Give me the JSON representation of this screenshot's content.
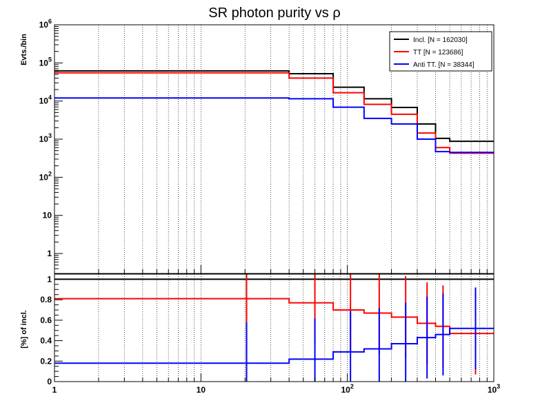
{
  "chart_data": [
    {
      "type": "line",
      "panel": "upper",
      "title": "SR photon purity vs ρ",
      "xlabel": "",
      "ylabel": "Evts./bin",
      "xscale": "log",
      "yscale": "log",
      "xlim": [
        1,
        1000
      ],
      "ylim": [
        0.3,
        1000000
      ],
      "grid": "x",
      "legend_position": "top-right",
      "bin_edges": [
        1,
        40,
        80,
        130,
        200,
        300,
        400,
        500,
        1000
      ],
      "series": [
        {
          "name": "Incl. [N = 162030]",
          "color": "#000000",
          "values": [
            62000,
            52000,
            23000,
            11500,
            6800,
            2500,
            1050,
            880
          ]
        },
        {
          "name": "TT [N = 123686]",
          "color": "#ff0000",
          "values": [
            55000,
            40000,
            16500,
            8200,
            4500,
            1450,
            600,
            430
          ]
        },
        {
          "name": "Anti TT. [N = 38344]",
          "color": "#0000ff",
          "values": [
            12000,
            11500,
            6900,
            3500,
            2500,
            1000,
            470,
            450
          ]
        }
      ],
      "x_ticks": [
        {
          "label": "1",
          "value": 1
        },
        {
          "label": "10",
          "value": 10
        },
        {
          "label": "10",
          "sup": "2",
          "value": 100
        },
        {
          "label": "10",
          "sup": "3",
          "value": 1000
        }
      ],
      "y_ticks": [
        {
          "label": "1",
          "value": 1
        },
        {
          "label": "10",
          "value": 10
        },
        {
          "label": "10",
          "sup": "2",
          "value": 100
        },
        {
          "label": "10",
          "sup": "3",
          "value": 1000
        },
        {
          "label": "10",
          "sup": "4",
          "value": 10000
        },
        {
          "label": "10",
          "sup": "5",
          "value": 100000
        },
        {
          "label": "10",
          "sup": "6",
          "value": 1000000
        }
      ]
    },
    {
      "type": "line",
      "panel": "lower",
      "title": "",
      "xlabel": "",
      "ylabel": "[%] of incl.",
      "xscale": "log",
      "yscale": "linear",
      "xlim": [
        1,
        1000
      ],
      "ylim": [
        0,
        1.05
      ],
      "grid": "x",
      "bin_edges": [
        1,
        40,
        80,
        130,
        200,
        300,
        400,
        500,
        1000
      ],
      "bin_centers": [
        20.5,
        60,
        105,
        165,
        250,
        350,
        450,
        750
      ],
      "series": [
        {
          "name": "Incl.",
          "color": "#000000",
          "values": [
            1,
            1,
            1,
            1,
            1,
            1,
            1,
            1
          ],
          "errors": [
            0,
            0,
            0,
            0,
            0,
            0,
            0,
            0
          ]
        },
        {
          "name": "TT",
          "color": "#ff0000",
          "values": [
            0.81,
            0.77,
            0.7,
            0.67,
            0.63,
            0.57,
            0.54,
            0.47
          ],
          "errors": [
            0.4,
            0.4,
            0.4,
            0.4,
            0.4,
            0.4,
            0.4,
            0.4
          ]
        },
        {
          "name": "Anti TT.",
          "color": "#0000ff",
          "values": [
            0.18,
            0.22,
            0.29,
            0.32,
            0.37,
            0.43,
            0.46,
            0.52
          ],
          "errors": [
            0.4,
            0.4,
            0.4,
            0.4,
            0.4,
            0.4,
            0.4,
            0.4
          ]
        }
      ],
      "x_ticks": [
        {
          "label": "1",
          "value": 1
        },
        {
          "label": "10",
          "value": 10
        },
        {
          "label": "10",
          "sup": "2",
          "value": 100
        },
        {
          "label": "10",
          "sup": "3",
          "value": 1000
        }
      ],
      "y_ticks": [
        {
          "label": "0",
          "value": 0
        },
        {
          "label": "0.2",
          "value": 0.2
        },
        {
          "label": "0.4",
          "value": 0.4
        },
        {
          "label": "0.6",
          "value": 0.6
        },
        {
          "label": "0.8",
          "value": 0.8
        },
        {
          "label": "1",
          "value": 1
        }
      ]
    }
  ]
}
